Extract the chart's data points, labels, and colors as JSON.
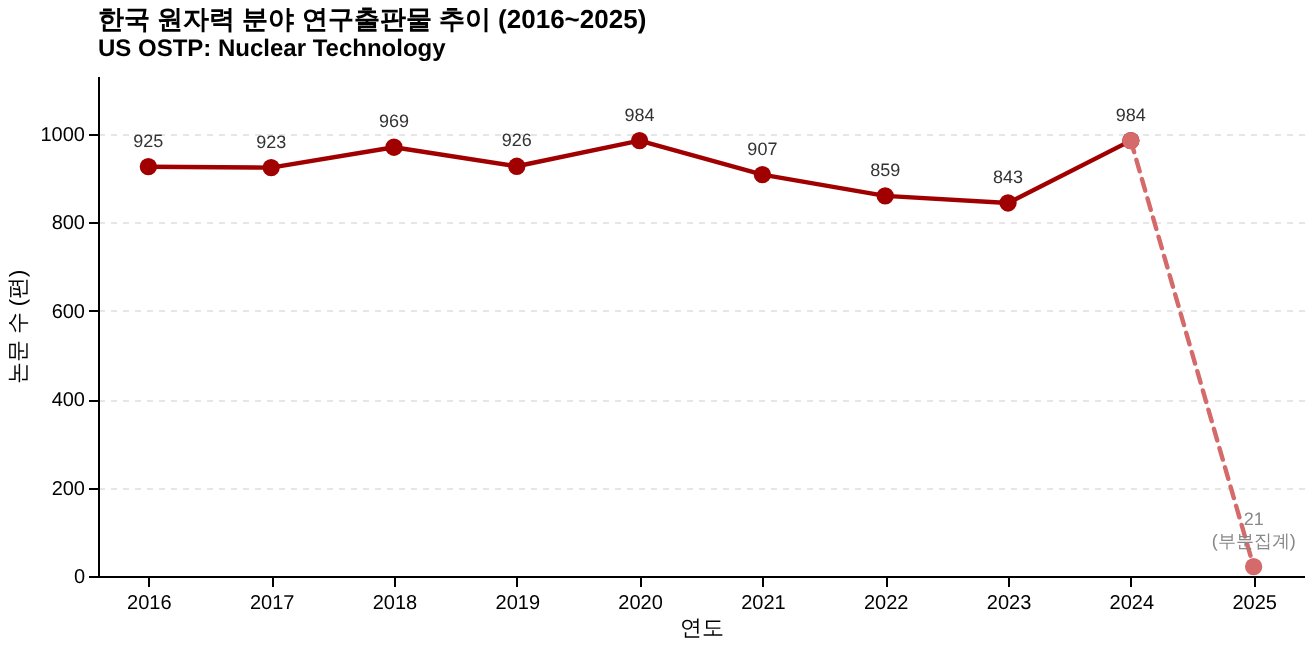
{
  "chart_data": {
    "type": "line",
    "title": "한국 원자력 분야 연구출판물 추이 (2016~2025)",
    "subtitle": "US OSTP: Nuclear Technology",
    "xlabel": "연도",
    "ylabel": "논문 수 (편)",
    "categories": [
      "2016",
      "2017",
      "2018",
      "2019",
      "2020",
      "2021",
      "2022",
      "2023",
      "2024",
      "2025"
    ],
    "series": [
      {
        "color": "#a00000",
        "line_style": "solid",
        "values": [
          925,
          923,
          969,
          926,
          984,
          907,
          859,
          843,
          984,
          null
        ],
        "value_labels": [
          "925",
          "923",
          "969",
          "926",
          "984",
          "907",
          "859",
          "843",
          "984",
          null
        ]
      },
      {
        "color": "#d46a6a",
        "line_style": "dashed",
        "values": [
          null,
          null,
          null,
          null,
          null,
          null,
          null,
          null,
          984,
          21
        ],
        "value_labels": [
          null,
          null,
          null,
          null,
          null,
          null,
          null,
          null,
          null,
          "21"
        ]
      }
    ],
    "annotations": [
      {
        "text": "(부분집계)",
        "x": "2025",
        "y": 21
      }
    ],
    "ylim": [
      0,
      1130
    ],
    "yticks": [
      0,
      200,
      400,
      600,
      800,
      1000
    ],
    "grid": "y",
    "marker": "circle"
  }
}
